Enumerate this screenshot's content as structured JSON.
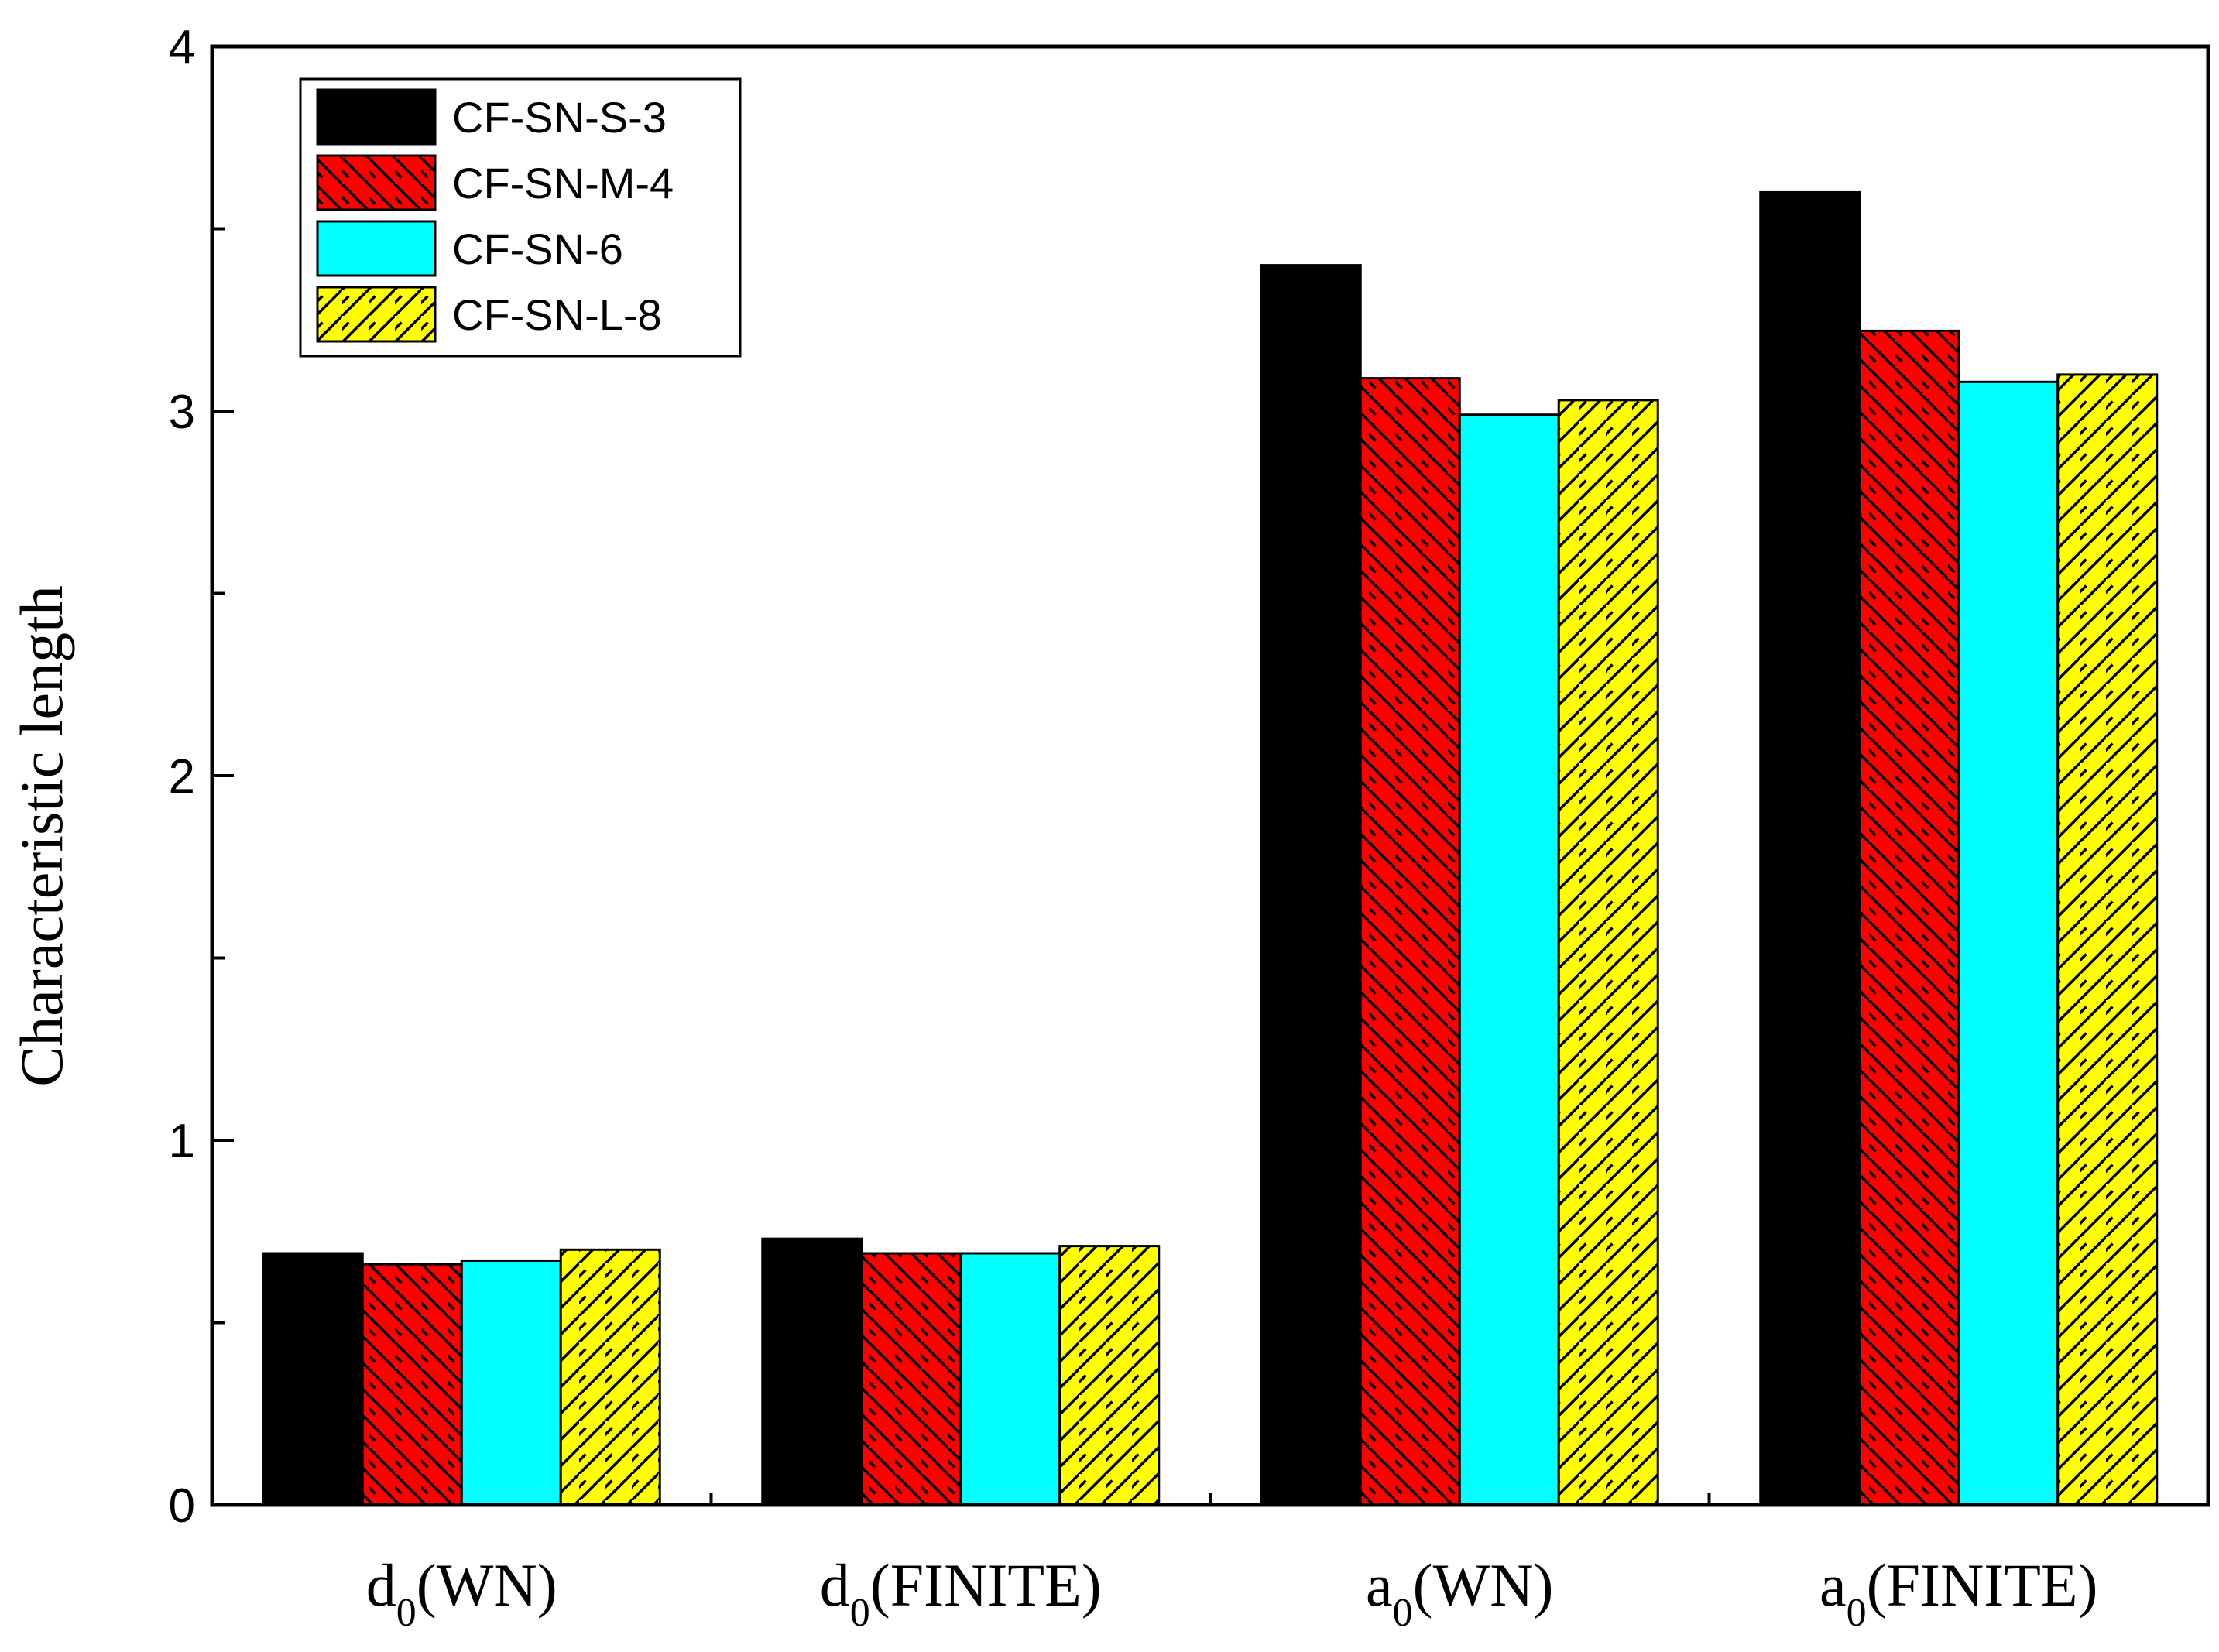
{
  "chart_data": {
    "type": "bar",
    "title": "",
    "xlabel": "",
    "ylabel": "Characteristic length",
    "ylim": [
      0,
      4
    ],
    "yticks": [
      0,
      1,
      2,
      3,
      4
    ],
    "categories": [
      {
        "base": "d",
        "sub": "0",
        "rest": "(WN)"
      },
      {
        "base": "d",
        "sub": "0",
        "rest": "(FINITE)"
      },
      {
        "base": "a",
        "sub": "0",
        "rest": "(WN)"
      },
      {
        "base": "a",
        "sub": "0",
        "rest": "(FINITE)"
      }
    ],
    "series": [
      {
        "name": "CF-SN-S-3",
        "color": "#000000",
        "pattern": "solid",
        "values": [
          0.69,
          0.73,
          3.4,
          3.6
        ]
      },
      {
        "name": "CF-SN-M-4",
        "color": "#ff0000",
        "pattern": "back-diagonal",
        "values": [
          0.66,
          0.69,
          3.09,
          3.22
        ]
      },
      {
        "name": "CF-SN-6",
        "color": "#00ffff",
        "pattern": "solid",
        "values": [
          0.67,
          0.69,
          2.99,
          3.08
        ]
      },
      {
        "name": "CF-SN-L-8",
        "color": "#ffff00",
        "pattern": "forward-diagonal",
        "values": [
          0.7,
          0.71,
          3.03,
          3.1
        ]
      }
    ],
    "legend_position": "top-left"
  }
}
